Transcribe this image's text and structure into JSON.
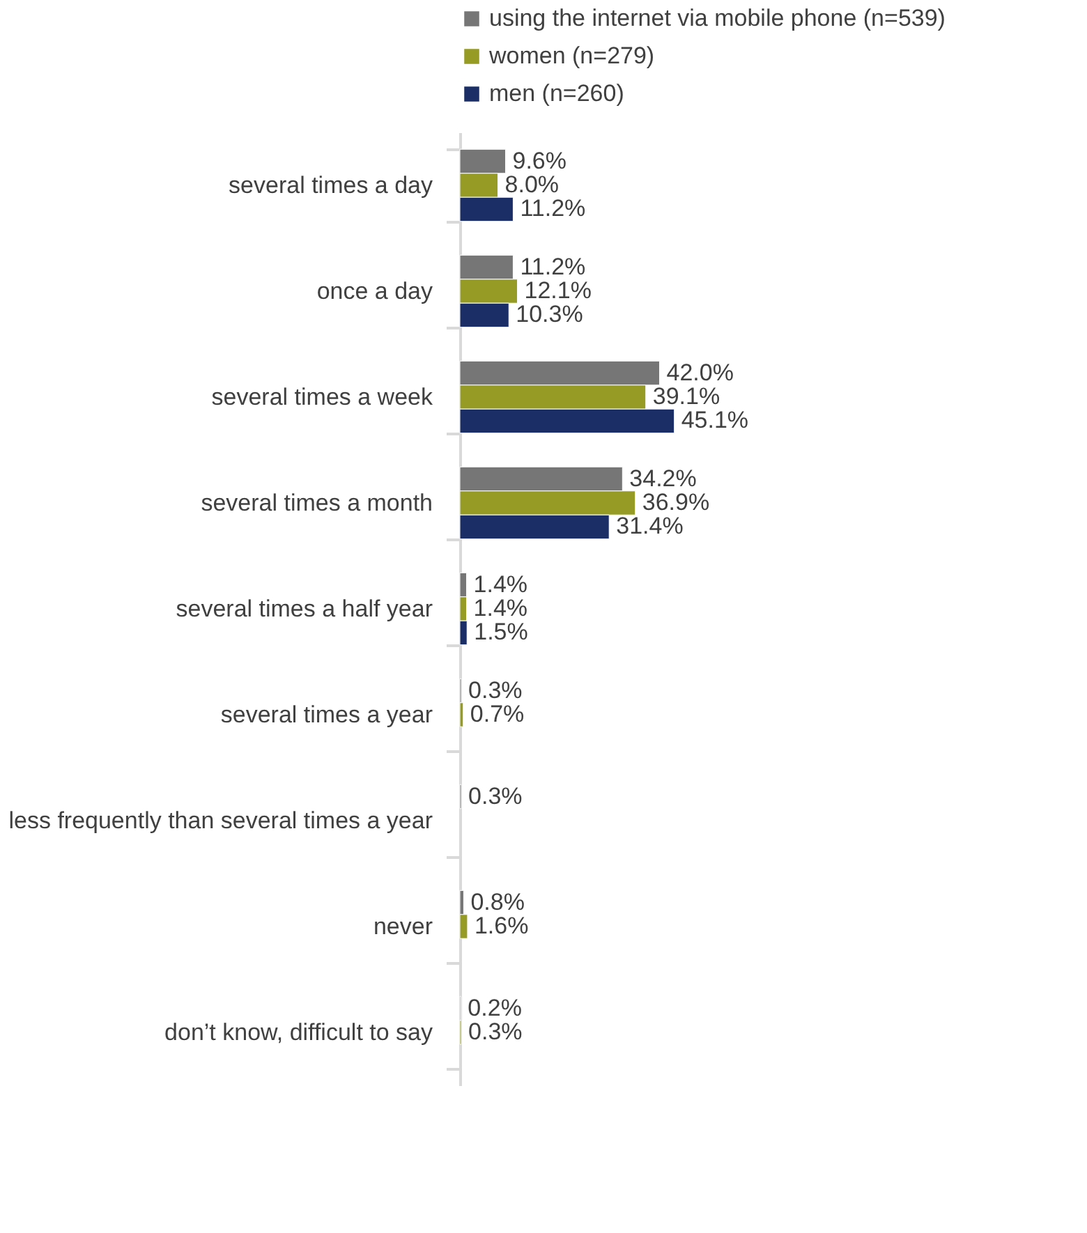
{
  "chart_data": {
    "type": "bar",
    "orientation": "horizontal",
    "legend": "top",
    "grid": false,
    "tick_labels": "y",
    "categories": [
      "several times a day",
      "once a day",
      "several times a week",
      "several times a month",
      "several times a half year",
      "several times a year",
      "less frequently than several times a year",
      "never",
      "don’t know, difficult to say"
    ],
    "series": [
      {
        "name": "using the internet via mobile phone (n=539)",
        "color": "#767676",
        "values": [
          9.6,
          11.2,
          42.0,
          34.2,
          1.4,
          0.3,
          0.3,
          0.8,
          0.2
        ],
        "value_labels": [
          "9.6%",
          "11.2%",
          "42.0%",
          "34.2%",
          "1.4%",
          "0.3%",
          "0.3%",
          "0.8%",
          "0.2%"
        ]
      },
      {
        "name": "women (n=279)",
        "color": "#959b24",
        "values": [
          8.0,
          12.1,
          39.1,
          36.9,
          1.4,
          0.7,
          null,
          1.6,
          0.3
        ],
        "value_labels": [
          "8.0%",
          "12.1%",
          "39.1%",
          "36.9%",
          "1.4%",
          "0.7%",
          null,
          "1.6%",
          "0.3%"
        ]
      },
      {
        "name": "men (n=260)",
        "color": "#1b2f66",
        "values": [
          11.2,
          10.3,
          45.1,
          31.4,
          1.5,
          null,
          null,
          null,
          null
        ],
        "value_labels": [
          "11.2%",
          "10.3%",
          "45.1%",
          "31.4%",
          "1.5%",
          null,
          null,
          null,
          null
        ]
      }
    ]
  }
}
